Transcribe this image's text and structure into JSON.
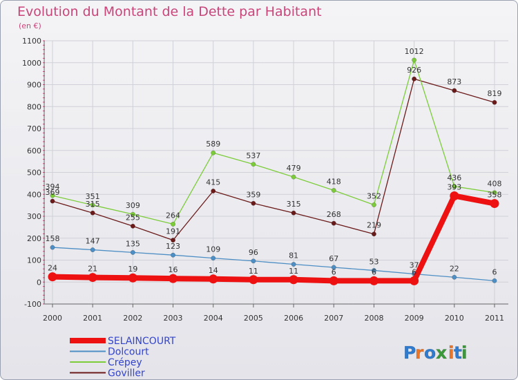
{
  "chart_data": {
    "type": "line",
    "title": "Evolution du Montant de la Dette par Habitant",
    "subtitle": "(en €)",
    "categories": [
      "2000",
      "2001",
      "2002",
      "2003",
      "2004",
      "2005",
      "2006",
      "2007",
      "2008",
      "2009",
      "2010",
      "2011"
    ],
    "ylim": [
      -100,
      1100
    ],
    "yticks": [
      -100,
      0,
      100,
      200,
      300,
      400,
      500,
      600,
      700,
      800,
      900,
      1000,
      1100
    ],
    "grid": true,
    "legend_position": "bottom-left",
    "series": [
      {
        "name": "Goviller",
        "color": "#6b1a1a",
        "values": [
          369,
          315,
          255,
          191,
          415,
          359,
          315,
          268,
          219,
          926,
          873,
          819
        ]
      },
      {
        "name": "Crépey",
        "color": "#7ccc3a",
        "values": [
          394,
          351,
          309,
          264,
          589,
          537,
          479,
          418,
          352,
          1012,
          436,
          408
        ]
      },
      {
        "name": "Dolcourt",
        "color": "#4d8ec4",
        "values": [
          158,
          147,
          135,
          123,
          109,
          96,
          81,
          67,
          53,
          37,
          22,
          6
        ]
      },
      {
        "name": "SELAINCOURT",
        "color": "#ee1111",
        "values": [
          24,
          21,
          19,
          16,
          14,
          11,
          11,
          6,
          6,
          6,
          393,
          358
        ]
      }
    ],
    "legend_order": [
      "SELAINCOURT",
      "Dolcourt",
      "Crépey",
      "Goviller"
    ]
  },
  "logo": {
    "text": "Proxiti",
    "letter_colors": [
      "#2e7bd0",
      "#e8762b",
      "#2e7bd0",
      "#3a9a3a",
      "#e8762b",
      "#2e7bd0",
      "#3a9a3a"
    ]
  }
}
